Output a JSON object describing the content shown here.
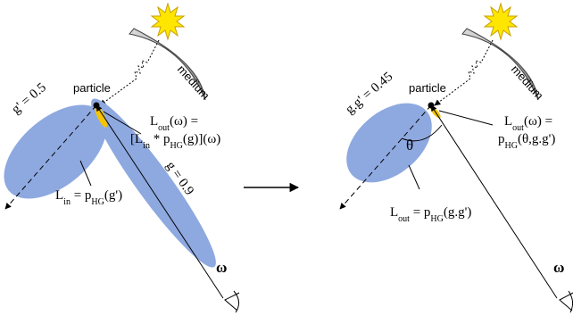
{
  "left": {
    "medium": "medium",
    "particle": "particle",
    "g_prime": "g' = 0.5",
    "g": "g = 0.9",
    "l_out_1": [
      "L",
      "out",
      "(ω) ="
    ],
    "l_out_2": [
      "[L",
      "in",
      " * p",
      "HG",
      "(g)](ω)"
    ],
    "l_in": [
      "L",
      "in",
      " = p",
      "HG",
      "(g')"
    ],
    "omega": "ω"
  },
  "right": {
    "medium": "medium",
    "particle": "particle",
    "g_prime": "g.g' = 0.45",
    "theta": "θ",
    "l_out_1": [
      "L",
      "out",
      "(ω) ="
    ],
    "l_out_2": [
      "p",
      "HG",
      "(θ,g.g')"
    ],
    "l_out_3": [
      "L",
      "out",
      " = p",
      "HG",
      "(g.g')"
    ],
    "omega": "ω"
  }
}
